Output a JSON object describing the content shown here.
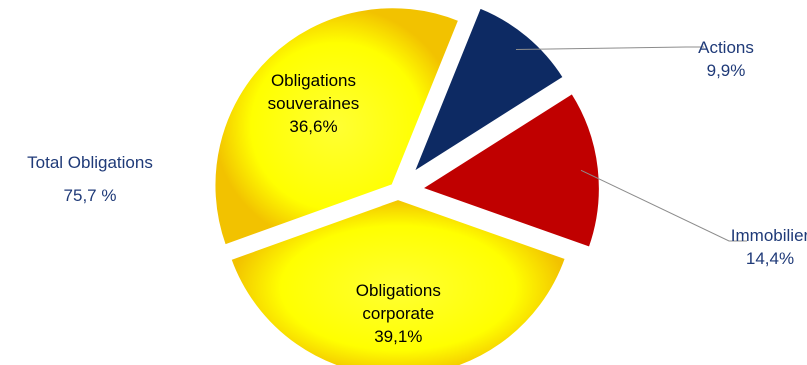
{
  "chart_data": {
    "type": "pie",
    "slices": [
      {
        "label_lines": [
          "Actions"
        ],
        "pct": "9,9%",
        "value": 9.9,
        "color": "#0d2a63",
        "label_color": "#1f3a78",
        "label_position": "outside"
      },
      {
        "label_lines": [
          "Immobilier"
        ],
        "pct": "14,4%",
        "value": 14.4,
        "color": "#c00000",
        "label_color": "#1f3a78",
        "label_position": "outside"
      },
      {
        "label_lines": [
          "Obligations",
          "corporate"
        ],
        "pct": "39,1%",
        "value": 39.1,
        "color": "#ffff00",
        "label_color": "#000000",
        "label_position": "inside"
      },
      {
        "label_lines": [
          "Obligations",
          "souveraines"
        ],
        "pct": "36,6%",
        "value": 36.6,
        "color": "#ffff00",
        "label_color": "#000000",
        "label_position": "inside"
      }
    ],
    "group_annotation": {
      "label": "Total Obligations",
      "value": "75,7 %",
      "color": "#1f3a78"
    }
  }
}
